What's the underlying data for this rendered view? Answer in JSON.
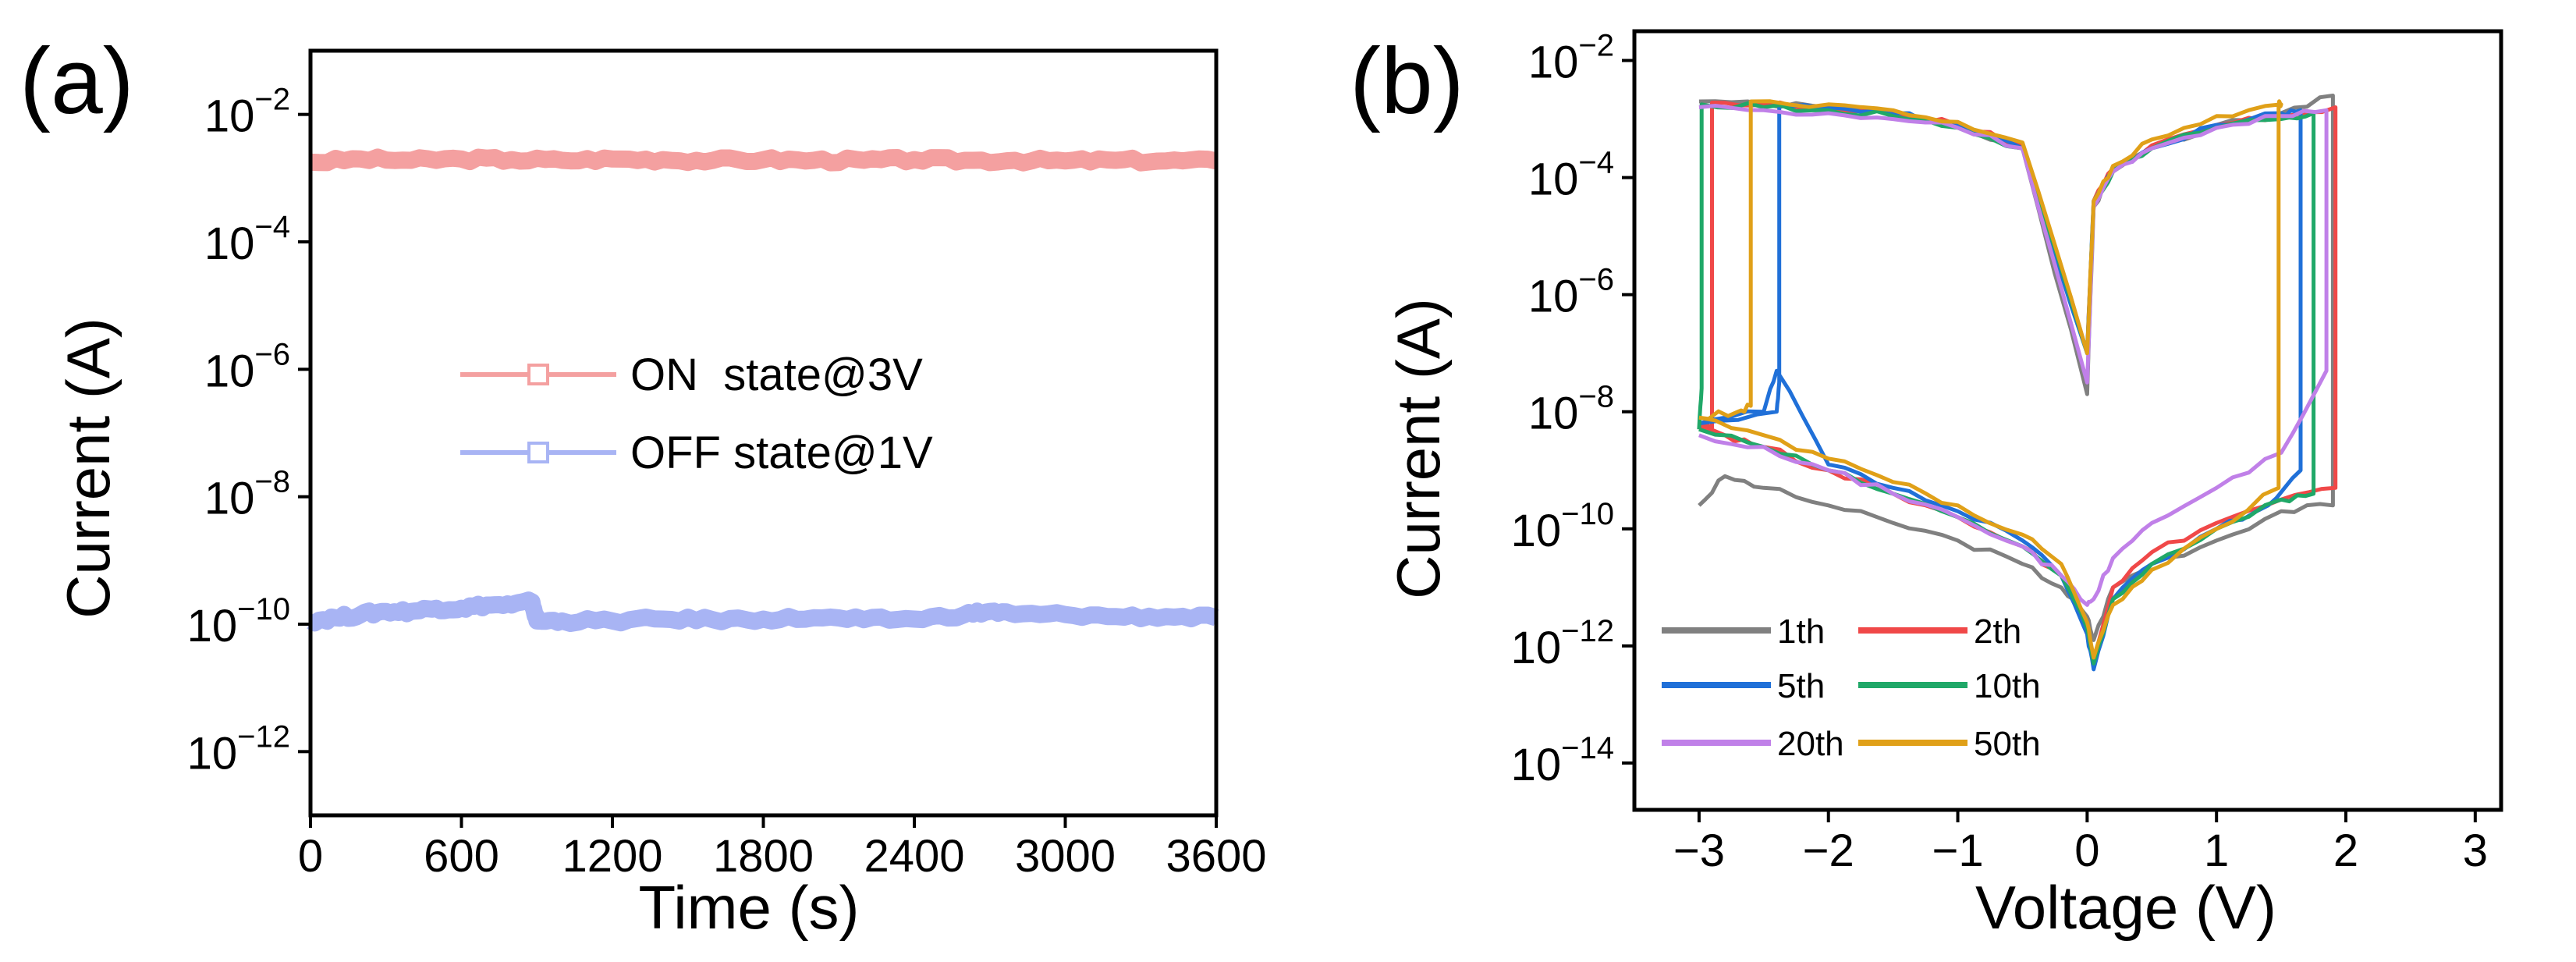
{
  "figure": {
    "panel_a_label": "(a)",
    "panel_b_label": "(b)"
  },
  "chart_data": [
    {
      "type": "line",
      "panel": "(a)",
      "xlabel": "Time (s)",
      "ylabel": "Current (A)",
      "xlim": [
        0,
        3600
      ],
      "ylim_log10": [
        -13,
        -1
      ],
      "x_ticks": [
        0,
        600,
        1200,
        1800,
        2400,
        3000,
        3600
      ],
      "x_tick_labels": [
        "0",
        "600",
        "1200",
        "1800",
        "2400",
        "3000",
        "3600"
      ],
      "y_tick_base": "10",
      "y_tick_exponents": [
        "−2",
        "−4",
        "−6",
        "−8",
        "−10",
        "−12"
      ],
      "y_tick_values_log10": [
        -2,
        -4,
        -6,
        -8,
        -10,
        -12
      ],
      "legend_position": "center",
      "series": [
        {
          "name": "ON  state@3V",
          "color": "#f4a0a0",
          "x": [
            0,
            200,
            400,
            600,
            800,
            1000,
            1200,
            1400,
            1600,
            1800,
            2000,
            2200,
            2400,
            2600,
            2800,
            3000,
            3200,
            3400,
            3600
          ],
          "y_log10": [
            -2.75,
            -2.7,
            -2.72,
            -2.7,
            -2.71,
            -2.72,
            -2.7,
            -2.71,
            -2.72,
            -2.71,
            -2.72,
            -2.72,
            -2.71,
            -2.72,
            -2.72,
            -2.73,
            -2.72,
            -2.73,
            -2.73
          ]
        },
        {
          "name": "OFF state@1V",
          "color": "#a8b4f4",
          "x": [
            0,
            100,
            200,
            300,
            400,
            500,
            600,
            700,
            800,
            880,
            900,
            1000,
            1200,
            1400,
            1600,
            1800,
            2000,
            2200,
            2400,
            2600,
            2700,
            2800,
            3000,
            3200,
            3400,
            3600
          ],
          "y_log10": [
            -9.95,
            -9.9,
            -9.85,
            -9.8,
            -9.8,
            -9.75,
            -9.75,
            -9.7,
            -9.7,
            -9.65,
            -9.95,
            -9.95,
            -9.95,
            -9.92,
            -9.93,
            -9.92,
            -9.9,
            -9.93,
            -9.92,
            -9.85,
            -9.8,
            -9.85,
            -9.85,
            -9.88,
            -9.88,
            -9.9
          ]
        }
      ]
    },
    {
      "type": "line",
      "panel": "(b)",
      "xlabel": "Voltage (V)",
      "ylabel": "Current (A)",
      "xlim": [
        -3.5,
        3.2
      ],
      "ylim_log10": [
        -14.8,
        -1.5
      ],
      "x_ticks": [
        -3,
        -2,
        -1,
        0,
        1,
        2,
        3
      ],
      "x_tick_labels": [
        "−3",
        "−2",
        "−1",
        "0",
        "1",
        "2",
        "3"
      ],
      "y_tick_base": "10",
      "y_tick_exponents": [
        "−2",
        "−4",
        "−6",
        "−8",
        "−10",
        "−12",
        "−14"
      ],
      "y_tick_values_log10": [
        -2,
        -4,
        -6,
        -8,
        -10,
        -12,
        -14
      ],
      "legend_position": "bottom-left",
      "series": [
        {
          "name": "1th",
          "color": "#808080",
          "x": [
            -3.0,
            -2.8,
            -2.5,
            -2.0,
            -1.5,
            -1.0,
            -0.5,
            -0.2,
            0.0,
            0.05,
            0.2,
            0.5,
            1.0,
            1.5,
            1.9,
            1.9,
            1.5,
            1.0,
            0.5,
            0.2,
            0.05,
            0.0,
            -0.5,
            -1.0,
            -1.5,
            -2.0,
            -2.5,
            -3.0
          ],
          "y_log10": [
            -9.6,
            -9.1,
            -9.3,
            -9.6,
            -9.9,
            -10.2,
            -10.6,
            -11.0,
            -11.5,
            -11.9,
            -11.0,
            -10.6,
            -10.2,
            -9.7,
            -9.6,
            -2.6,
            -2.9,
            -3.1,
            -3.5,
            -3.9,
            -4.5,
            -7.7,
            -3.5,
            -3.1,
            -2.9,
            -2.8,
            -2.75,
            -2.7
          ]
        },
        {
          "name": "2th",
          "color": "#f04848",
          "x": [
            -3.0,
            -2.8,
            -2.5,
            -2.0,
            -1.5,
            -1.0,
            -0.5,
            -0.2,
            0.0,
            0.05,
            0.2,
            0.5,
            1.0,
            1.5,
            1.92,
            1.92,
            1.5,
            1.0,
            0.5,
            0.2,
            0.05,
            0.0,
            -0.5,
            -1.0,
            -1.5,
            -2.0,
            -2.5,
            -2.9,
            -2.9,
            -3.0
          ],
          "y_log10": [
            -8.2,
            -8.4,
            -8.6,
            -9.0,
            -9.4,
            -9.8,
            -10.3,
            -10.8,
            -11.6,
            -12.2,
            -11.0,
            -10.4,
            -9.9,
            -9.5,
            -9.3,
            -2.8,
            -2.95,
            -3.1,
            -3.45,
            -3.85,
            -4.4,
            -7.0,
            -3.45,
            -3.1,
            -2.9,
            -2.8,
            -2.75,
            -2.72,
            -8.3,
            -8.3
          ]
        },
        {
          "name": "5th",
          "color": "#2070d8",
          "x": [
            -3.0,
            -2.5,
            -2.4,
            -2.0,
            -1.5,
            -1.0,
            -0.5,
            -0.2,
            0.0,
            0.05,
            0.2,
            0.5,
            1.0,
            1.4,
            1.65,
            1.65,
            1.5,
            1.0,
            0.5,
            0.2,
            0.05,
            0.0,
            -0.5,
            -1.0,
            -1.5,
            -2.0,
            -2.38,
            -2.38,
            -2.4,
            -3.0
          ],
          "y_log10": [
            -8.2,
            -8.0,
            -7.3,
            -8.9,
            -9.3,
            -9.7,
            -10.2,
            -10.8,
            -11.8,
            -12.4,
            -11.2,
            -10.6,
            -10.0,
            -9.6,
            -9.0,
            -2.85,
            -2.9,
            -3.1,
            -3.5,
            -3.9,
            -4.4,
            -7.0,
            -3.5,
            -3.1,
            -2.9,
            -2.8,
            -2.78,
            -7.5,
            -8.0,
            -8.2
          ]
        },
        {
          "name": "10th",
          "color": "#20a868",
          "x": [
            -3.0,
            -2.5,
            -2.0,
            -1.5,
            -1.0,
            -0.5,
            -0.2,
            0.0,
            0.05,
            0.2,
            0.5,
            1.0,
            1.5,
            1.75,
            1.75,
            1.5,
            1.0,
            0.5,
            0.2,
            0.05,
            0.0,
            -0.5,
            -1.0,
            -1.5,
            -2.0,
            -2.5,
            -2.98,
            -2.98,
            -3.0
          ],
          "y_log10": [
            -8.3,
            -8.6,
            -9.0,
            -9.4,
            -9.8,
            -10.3,
            -10.8,
            -11.7,
            -12.3,
            -11.2,
            -10.6,
            -10.0,
            -9.5,
            -9.4,
            -2.9,
            -3.0,
            -3.15,
            -3.5,
            -3.9,
            -4.5,
            -7.0,
            -3.5,
            -3.15,
            -2.95,
            -2.85,
            -2.8,
            -2.75,
            -7.6,
            -8.3
          ]
        },
        {
          "name": "20th",
          "color": "#c080e8",
          "x": [
            -3.0,
            -2.5,
            -2.0,
            -1.5,
            -1.0,
            -0.5,
            -0.2,
            0.0,
            0.05,
            0.2,
            0.5,
            1.0,
            1.5,
            1.85,
            1.85,
            1.5,
            1.0,
            0.5,
            0.2,
            0.05,
            0.0,
            -0.5,
            -1.0,
            -1.5,
            -2.0,
            -2.5,
            -3.0
          ],
          "y_log10": [
            -8.4,
            -8.6,
            -9.0,
            -9.4,
            -9.8,
            -10.3,
            -10.8,
            -11.3,
            -11.2,
            -10.5,
            -9.9,
            -9.3,
            -8.7,
            -7.3,
            -2.85,
            -2.95,
            -3.15,
            -3.5,
            -3.9,
            -4.5,
            -7.5,
            -3.5,
            -3.15,
            -3.0,
            -2.9,
            -2.85,
            -2.8
          ]
        },
        {
          "name": "50th",
          "color": "#e0a018",
          "x": [
            -3.0,
            -2.5,
            -2.0,
            -1.5,
            -1.0,
            -0.5,
            -0.2,
            0.0,
            0.05,
            0.2,
            0.5,
            1.0,
            1.48,
            1.48,
            1.5,
            1.0,
            0.5,
            0.2,
            0.05,
            0.0,
            -0.5,
            -1.0,
            -1.5,
            -2.0,
            -2.6,
            -2.6,
            -2.7,
            -3.0
          ],
          "y_log10": [
            -8.1,
            -8.4,
            -8.8,
            -9.2,
            -9.6,
            -10.1,
            -10.6,
            -11.6,
            -12.2,
            -11.3,
            -10.7,
            -10.0,
            -9.3,
            -2.75,
            -2.75,
            -2.95,
            -3.35,
            -3.8,
            -4.4,
            -7.0,
            -3.4,
            -3.05,
            -2.85,
            -2.75,
            -2.7,
            -7.9,
            -8.0,
            -8.1
          ]
        }
      ]
    }
  ]
}
